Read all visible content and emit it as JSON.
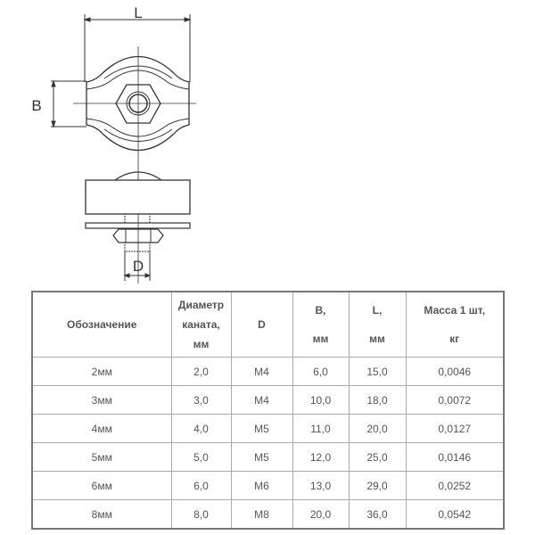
{
  "drawing": {
    "label_L": "L",
    "label_B": "B",
    "label_D": "D"
  },
  "table": {
    "headers": [
      {
        "lines": [
          "Обозначение"
        ]
      },
      {
        "lines": [
          "Диаметр",
          "каната,",
          "мм"
        ]
      },
      {
        "lines": [
          "D"
        ]
      },
      {
        "lines": [
          "B,",
          "мм"
        ]
      },
      {
        "lines": [
          "L,",
          "мм"
        ]
      },
      {
        "lines": [
          "Масса 1 шт,",
          "кг"
        ]
      }
    ],
    "rows": [
      [
        "2мм",
        "2,0",
        "M4",
        "6,0",
        "15,0",
        "0,0046"
      ],
      [
        "3мм",
        "3,0",
        "M4",
        "10,0",
        "18,0",
        "0,0072"
      ],
      [
        "4мм",
        "4,0",
        "M5",
        "11,0",
        "20,0",
        "0,0127"
      ],
      [
        "5мм",
        "5,0",
        "M5",
        "12,0",
        "25,0",
        "0,0146"
      ],
      [
        "6мм",
        "6,0",
        "M6",
        "13,0",
        "29,0",
        "0,0252"
      ],
      [
        "8мм",
        "8,0",
        "M8",
        "20,0",
        "36,0",
        "0,0542"
      ]
    ]
  }
}
